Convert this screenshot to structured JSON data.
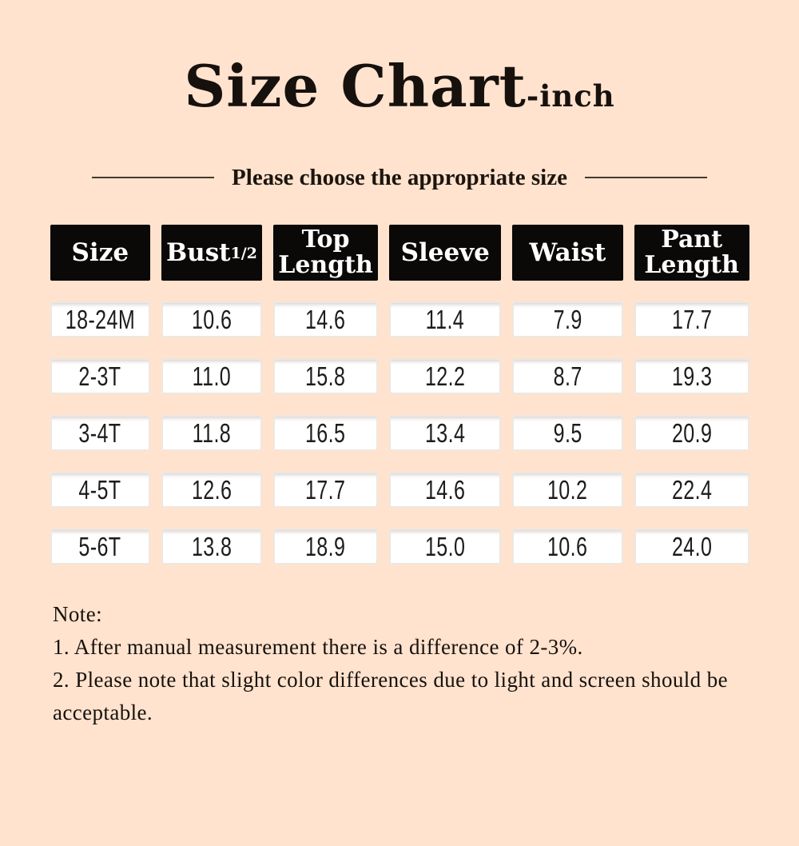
{
  "title": {
    "main": "Size Chart",
    "suffix": "-inch"
  },
  "subtitle": "Please choose the appropriate size",
  "table": {
    "columns": [
      {
        "label": "Size"
      },
      {
        "label": "Bust",
        "fraction": "1/2"
      },
      {
        "lines": [
          "Top",
          "Length"
        ],
        "label": "Top Length"
      },
      {
        "label": "Sleeve"
      },
      {
        "label": "Waist"
      },
      {
        "lines": [
          "Pant",
          "Length"
        ],
        "label": "Pant Length"
      }
    ],
    "rows": [
      [
        "18-24M",
        "10.6",
        "14.6",
        "11.4",
        "7.9",
        "17.7"
      ],
      [
        "2-3T",
        "11.0",
        "15.8",
        "12.2",
        "8.7",
        "19.3"
      ],
      [
        "3-4T",
        "11.8",
        "16.5",
        "13.4",
        "9.5",
        "20.9"
      ],
      [
        "4-5T",
        "12.6",
        "17.7",
        "14.6",
        "10.2",
        "22.4"
      ],
      [
        "5-6T",
        "13.8",
        "18.9",
        "15.0",
        "10.6",
        "24.0"
      ]
    ]
  },
  "note": {
    "label": "Note:",
    "items": [
      {
        "lines": [
          "1. After manual measurement there is a difference of 2-3%."
        ]
      },
      {
        "lines": [
          "2. Please note that slight color differences due to light and screen should be",
          "acceptable."
        ]
      }
    ]
  },
  "colors": {
    "background": "#FFE3CE",
    "header_bg": "#0B0808",
    "header_text": "#FFFFFF",
    "cell_bg": "#FFFFFF",
    "cell_border": "#EDE7E0",
    "text": "#17110D",
    "divider": "#43382E"
  }
}
